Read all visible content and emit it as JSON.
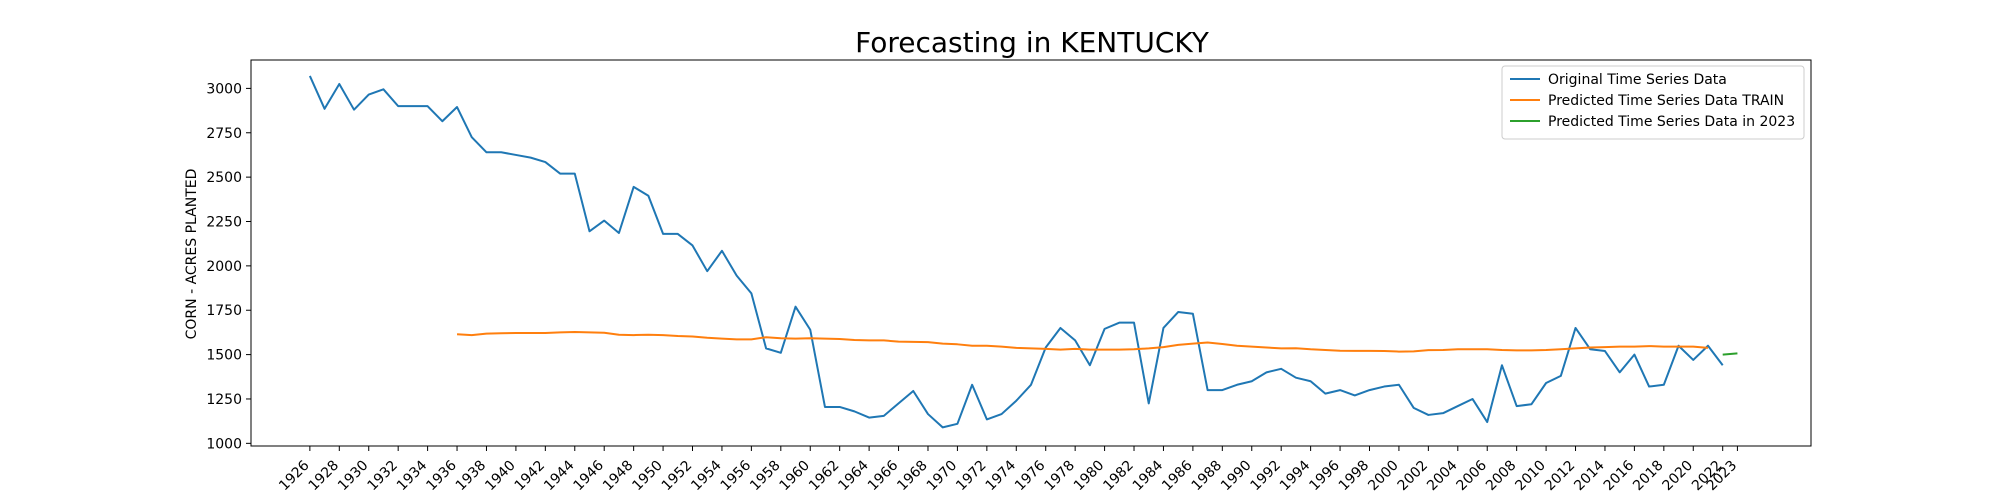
{
  "chart_data": {
    "type": "line",
    "title": "Forecasting in KENTUCKY",
    "xlabel": "",
    "ylabel": "CORN - ACRES PLANTED",
    "xlim": [
      1922,
      2028
    ],
    "ylim": [
      985,
      3160
    ],
    "yticks": [
      1000,
      1250,
      1500,
      1750,
      2000,
      2250,
      2500,
      2750,
      3000
    ],
    "xticks": [
      "1926",
      "1928",
      "1930",
      "1932",
      "1934",
      "1936",
      "1938",
      "1940",
      "1942",
      "1944",
      "1946",
      "1948",
      "1950",
      "1952",
      "1954",
      "1956",
      "1958",
      "1960",
      "1962",
      "1964",
      "1966",
      "1968",
      "1970",
      "1972",
      "1974",
      "1976",
      "1978",
      "1980",
      "1982",
      "1984",
      "1986",
      "1988",
      "1990",
      "1992",
      "1994",
      "1996",
      "1998",
      "2000",
      "2002",
      "2004",
      "2006",
      "2008",
      "2010",
      "2012",
      "2014",
      "2016",
      "2018",
      "2020",
      "2022",
      "2023"
    ],
    "legend_position": "top-right",
    "series": [
      {
        "name": "Original Time Series Data",
        "color": "#1f77b4",
        "x": [
          1926,
          1927,
          1928,
          1929,
          1930,
          1931,
          1932,
          1933,
          1934,
          1935,
          1936,
          1937,
          1938,
          1939,
          1940,
          1941,
          1942,
          1943,
          1944,
          1945,
          1946,
          1947,
          1948,
          1949,
          1950,
          1951,
          1952,
          1953,
          1954,
          1955,
          1956,
          1957,
          1958,
          1959,
          1960,
          1961,
          1962,
          1963,
          1964,
          1965,
          1966,
          1967,
          1968,
          1969,
          1970,
          1971,
          1972,
          1973,
          1974,
          1975,
          1976,
          1977,
          1978,
          1979,
          1980,
          1981,
          1982,
          1983,
          1984,
          1985,
          1986,
          1987,
          1988,
          1989,
          1990,
          1991,
          1992,
          1993,
          1994,
          1995,
          1996,
          1997,
          1998,
          1999,
          2000,
          2001,
          2002,
          2003,
          2004,
          2005,
          2006,
          2007,
          2008,
          2009,
          2010,
          2011,
          2012,
          2013,
          2014,
          2015,
          2016,
          2017,
          2018,
          2019,
          2020,
          2021,
          2022
        ],
        "values": [
          3070,
          2885,
          3025,
          2880,
          2965,
          2995,
          2900,
          2900,
          2900,
          2815,
          2895,
          2725,
          2640,
          2640,
          2625,
          2610,
          2585,
          2520,
          2520,
          2195,
          2255,
          2185,
          2445,
          2395,
          2180,
          2180,
          2115,
          1970,
          2085,
          1945,
          1845,
          1535,
          1510,
          1770,
          1640,
          1205,
          1205,
          1180,
          1145,
          1155,
          1225,
          1295,
          1165,
          1090,
          1110,
          1330,
          1135,
          1165,
          1240,
          1330,
          1540,
          1650,
          1580,
          1440,
          1645,
          1680,
          1680,
          1225,
          1650,
          1740,
          1730,
          1300,
          1300,
          1330,
          1350,
          1400,
          1420,
          1370,
          1350,
          1280,
          1300,
          1270,
          1300,
          1320,
          1330,
          1200,
          1160,
          1170,
          1210,
          1250,
          1120,
          1440,
          1210,
          1220,
          1340,
          1380,
          1650,
          1530,
          1520,
          1400,
          1500,
          1320,
          1330,
          1550,
          1470,
          1550,
          1440
        ]
      },
      {
        "name": "Predicted Time Series Data TRAIN",
        "color": "#ff7f0e",
        "x": [
          1936,
          1937,
          1938,
          1939,
          1940,
          1941,
          1942,
          1943,
          1944,
          1945,
          1946,
          1947,
          1948,
          1949,
          1950,
          1951,
          1952,
          1953,
          1954,
          1955,
          1956,
          1957,
          1958,
          1959,
          1960,
          1961,
          1962,
          1963,
          1964,
          1965,
          1966,
          1967,
          1968,
          1969,
          1970,
          1971,
          1972,
          1973,
          1974,
          1975,
          1976,
          1977,
          1978,
          1979,
          1980,
          1981,
          1982,
          1983,
          1984,
          1985,
          1986,
          1987,
          1988,
          1989,
          1990,
          1991,
          1992,
          1993,
          1994,
          1995,
          1996,
          1997,
          1998,
          1999,
          2000,
          2001,
          2002,
          2003,
          2004,
          2005,
          2006,
          2007,
          2008,
          2009,
          2010,
          2011,
          2012,
          2013,
          2014,
          2015,
          2016,
          2017,
          2018,
          2019,
          2020,
          2021
        ],
        "values": [
          1615,
          1610,
          1618,
          1620,
          1622,
          1622,
          1622,
          1625,
          1627,
          1625,
          1623,
          1612,
          1610,
          1612,
          1610,
          1605,
          1602,
          1595,
          1590,
          1586,
          1586,
          1598,
          1592,
          1590,
          1592,
          1590,
          1588,
          1582,
          1580,
          1580,
          1573,
          1572,
          1570,
          1562,
          1558,
          1550,
          1550,
          1545,
          1538,
          1535,
          1532,
          1528,
          1532,
          1528,
          1528,
          1528,
          1530,
          1535,
          1542,
          1555,
          1562,
          1568,
          1560,
          1550,
          1545,
          1540,
          1535,
          1536,
          1530,
          1526,
          1522,
          1521,
          1521,
          1520,
          1517,
          1518,
          1525,
          1526,
          1530,
          1530,
          1530,
          1526,
          1524,
          1524,
          1526,
          1530,
          1535,
          1540,
          1542,
          1545,
          1545,
          1548,
          1545,
          1545,
          1545,
          1538
        ]
      },
      {
        "name": "Predicted Time Series Data in 2023",
        "color": "#2ca02c",
        "x": [
          2022,
          2023
        ],
        "values": [
          1500,
          1507
        ]
      }
    ]
  }
}
